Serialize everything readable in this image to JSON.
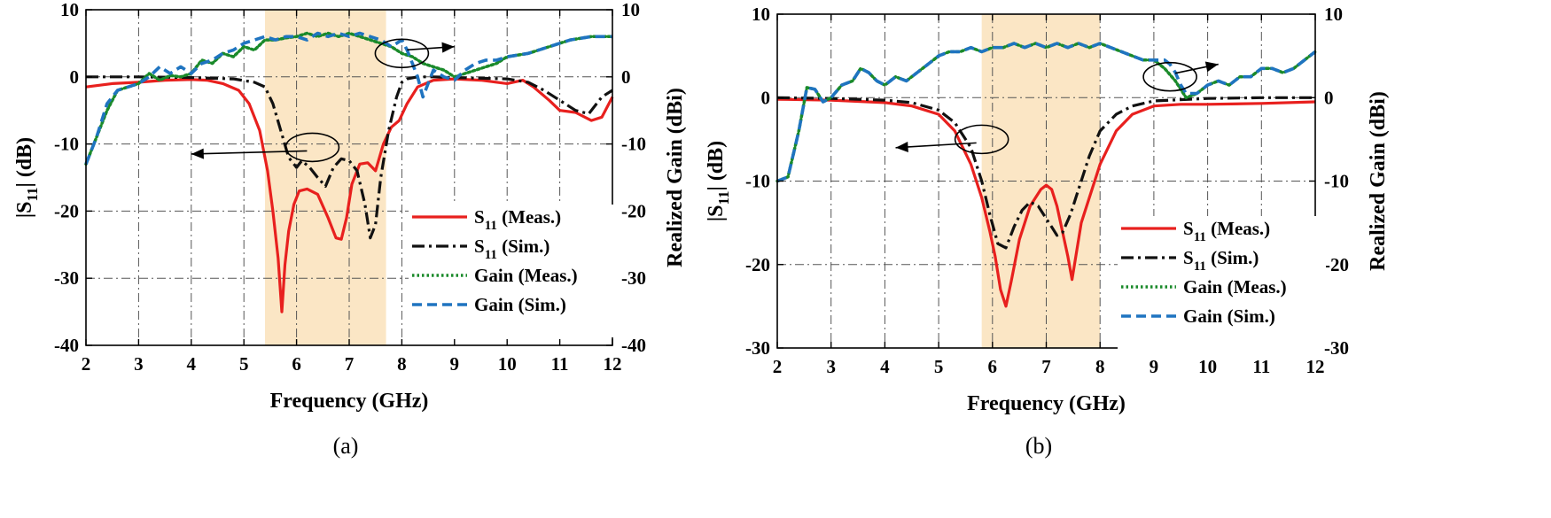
{
  "colors": {
    "s11_meas": "#e8201e",
    "s11_sim": "#111111",
    "gain_meas": "#1a8a2a",
    "gain_sim": "#1f74c0",
    "band": "#fbe6c5"
  },
  "chart_data": [
    {
      "type": "line",
      "caption": "(a)",
      "xlabel": "Frequency (GHz)",
      "ylabel_left_pre": "|S",
      "ylabel_left_sub": "11",
      "ylabel_left_post": "| (dB)",
      "ylabel_right": "Realized Gain (dBi)",
      "xlim": [
        2,
        12
      ],
      "ylim_left": [
        -40,
        10
      ],
      "ylim_right": [
        -40,
        10
      ],
      "xticks": [
        2,
        3,
        4,
        5,
        6,
        7,
        8,
        9,
        10,
        11,
        12
      ],
      "yticks_left": [
        -40,
        -30,
        -20,
        -10,
        0,
        10
      ],
      "yticks_right": [
        -40,
        -30,
        -20,
        -10,
        0,
        10
      ],
      "shaded_band": [
        5.4,
        7.7
      ],
      "grid": true,
      "legend_position": "lower-right",
      "legend": [
        {
          "main": "S",
          "sub": "11",
          "rest": " (Meas.)"
        },
        {
          "main": "S",
          "sub": "11",
          "rest": " (Sim.)"
        },
        {
          "main": "Gain (Meas.)",
          "sub": "",
          "rest": ""
        },
        {
          "main": "Gain (Sim.)",
          "sub": "",
          "rest": ""
        }
      ],
      "annotations": [
        {
          "ellipse_at": [
            6.3,
            -10.5
          ],
          "arrow_to": [
            4.0,
            -11.5
          ],
          "meaning": "S11 curves read on left axis"
        },
        {
          "ellipse_at": [
            8.0,
            3.5
          ],
          "arrow_to": [
            9.0,
            4.5
          ],
          "meaning": "Gain curves read on right axis"
        }
      ],
      "series": [
        {
          "name": "S11 (Meas.)",
          "axis": "left",
          "style": "solid",
          "x": [
            2,
            2.5,
            3,
            3.5,
            4,
            4.3,
            4.6,
            4.9,
            5.1,
            5.3,
            5.45,
            5.55,
            5.65,
            5.72,
            5.78,
            5.85,
            5.95,
            6.05,
            6.2,
            6.4,
            6.6,
            6.75,
            6.85,
            6.95,
            7.05,
            7.2,
            7.35,
            7.5,
            7.65,
            7.8,
            7.95,
            8.1,
            8.3,
            8.6,
            9,
            9.5,
            10,
            10.3,
            10.5,
            10.8,
            11,
            11.3,
            11.6,
            11.8,
            12
          ],
          "y": [
            -1.5,
            -1,
            -0.8,
            -0.5,
            -0.4,
            -0.5,
            -1,
            -2,
            -4,
            -8,
            -14,
            -20,
            -27,
            -35,
            -28,
            -23,
            -19,
            -17,
            -16.7,
            -17.5,
            -21,
            -24,
            -24.2,
            -21,
            -16,
            -13,
            -12.8,
            -14,
            -10,
            -7.5,
            -6.5,
            -4,
            -1.5,
            -0.5,
            -0.3,
            -0.5,
            -1,
            -0.5,
            -1.5,
            -3.5,
            -5,
            -5.3,
            -6.5,
            -6,
            -3
          ]
        },
        {
          "name": "S11 (Sim.)",
          "axis": "left",
          "style": "dashdot",
          "x": [
            2,
            3,
            4,
            4.8,
            5.2,
            5.4,
            5.55,
            5.7,
            5.85,
            6.0,
            6.1,
            6.25,
            6.4,
            6.55,
            6.7,
            6.85,
            7.0,
            7.15,
            7.3,
            7.4,
            7.5,
            7.6,
            7.75,
            7.9,
            8.0,
            8.1,
            8.3,
            8.6,
            9,
            10,
            10.4,
            10.7,
            11,
            11.3,
            11.55,
            11.8,
            12
          ],
          "y": [
            0,
            0,
            -0.1,
            -0.3,
            -0.8,
            -1.5,
            -4,
            -8,
            -12,
            -13.5,
            -12.5,
            -13.5,
            -15,
            -16.3,
            -13.5,
            -12.2,
            -12.5,
            -14,
            -19,
            -24,
            -22,
            -15,
            -8,
            -3,
            -0.8,
            -0.3,
            0,
            0,
            -0.1,
            -0.3,
            -0.8,
            -2,
            -3.5,
            -5,
            -5.5,
            -3,
            -2
          ]
        },
        {
          "name": "Gain (Meas.)",
          "axis": "right",
          "style": "dotted",
          "x": [
            2,
            2.2,
            2.4,
            2.6,
            2.8,
            3,
            3.2,
            3.4,
            3.6,
            3.8,
            4,
            4.2,
            4.4,
            4.6,
            4.8,
            5,
            5.2,
            5.4,
            5.6,
            5.8,
            6,
            6.2,
            6.4,
            6.6,
            6.8,
            7,
            7.2,
            7.4,
            7.6,
            7.8,
            8,
            8.2,
            8.4,
            8.6,
            8.8,
            9,
            9.2,
            9.4,
            9.6,
            9.8,
            10,
            10.4,
            10.8,
            11.2,
            11.6,
            12
          ],
          "y": [
            -13,
            -9,
            -5,
            -2,
            -1.5,
            -1,
            0.5,
            -0.5,
            0.2,
            0,
            0.5,
            2.5,
            2,
            3.5,
            3,
            4.5,
            4,
            5.5,
            5.5,
            5.8,
            6,
            6.5,
            6,
            6.5,
            6,
            6.5,
            6,
            5.5,
            5,
            4.5,
            3.5,
            3,
            2,
            1.5,
            1,
            0,
            0.5,
            1,
            1.5,
            2,
            3,
            3.5,
            4.5,
            5.5,
            6,
            6
          ]
        },
        {
          "name": "Gain (Sim.)",
          "axis": "right",
          "style": "dashed",
          "x": [
            2,
            2.2,
            2.4,
            2.6,
            2.8,
            3,
            3.2,
            3.4,
            3.6,
            3.8,
            4,
            4.2,
            4.4,
            4.6,
            4.8,
            5,
            5.2,
            5.4,
            5.6,
            5.8,
            6,
            6.2,
            6.4,
            6.6,
            6.8,
            7,
            7.2,
            7.4,
            7.6,
            7.8,
            8,
            8.1,
            8.2,
            8.3,
            8.4,
            8.5,
            8.6,
            8.8,
            9,
            9.2,
            9.4,
            9.6,
            9.8,
            10,
            10.4,
            10.8,
            11.2,
            11.6,
            12
          ],
          "y": [
            -13,
            -9,
            -4,
            -2,
            -1.5,
            -1,
            0,
            1.5,
            0.5,
            1.5,
            0.5,
            2,
            2.5,
            3.5,
            4,
            5,
            5.5,
            6,
            5.5,
            6,
            6,
            5.5,
            6.5,
            6,
            6.5,
            6,
            6.5,
            6,
            5.5,
            4.5,
            5.5,
            4,
            2,
            0,
            -3,
            -1,
            1,
            0,
            -0.5,
            1,
            2,
            2.5,
            2.5,
            3,
            3.5,
            4.5,
            5.5,
            6,
            6
          ]
        }
      ]
    },
    {
      "type": "line",
      "caption": "(b)",
      "xlabel": "Frequency (GHz)",
      "ylabel_left_pre": "|S",
      "ylabel_left_sub": "11",
      "ylabel_left_post": "| (dB)",
      "ylabel_right": "Realized Gain (dBi)",
      "xlim": [
        2,
        12
      ],
      "ylim_left": [
        -30,
        10
      ],
      "ylim_right": [
        -30,
        10
      ],
      "xticks": [
        2,
        3,
        4,
        5,
        6,
        7,
        8,
        9,
        10,
        11,
        12
      ],
      "yticks_left": [
        -30,
        -20,
        -10,
        0,
        10
      ],
      "yticks_right": [
        -30,
        -20,
        -10,
        0,
        10
      ],
      "shaded_band": [
        5.8,
        8.0
      ],
      "grid": true,
      "legend_position": "lower-right",
      "legend": [
        {
          "main": "S",
          "sub": "11",
          "rest": " (Meas.)"
        },
        {
          "main": "S",
          "sub": "11",
          "rest": " (Sim.)"
        },
        {
          "main": "Gain (Meas.)",
          "sub": "",
          "rest": ""
        },
        {
          "main": "Gain (Sim.)",
          "sub": "",
          "rest": ""
        }
      ],
      "annotations": [
        {
          "ellipse_at": [
            5.8,
            -5.0
          ],
          "arrow_to": [
            4.2,
            -6.0
          ],
          "meaning": "S11 curves read on left axis"
        },
        {
          "ellipse_at": [
            9.3,
            2.5
          ],
          "arrow_to": [
            10.2,
            4.0
          ],
          "meaning": "Gain curves read on right axis"
        }
      ],
      "series": [
        {
          "name": "S11 (Meas.)",
          "axis": "left",
          "style": "solid",
          "x": [
            2,
            3,
            4,
            4.5,
            5,
            5.3,
            5.6,
            5.8,
            5.95,
            6.05,
            6.15,
            6.25,
            6.35,
            6.5,
            6.7,
            6.9,
            7.0,
            7.1,
            7.2,
            7.3,
            7.4,
            7.48,
            7.55,
            7.65,
            7.8,
            8.0,
            8.3,
            8.6,
            9,
            9.5,
            10,
            11,
            12
          ],
          "y": [
            -0.2,
            -0.3,
            -0.6,
            -1,
            -2,
            -4,
            -8,
            -12,
            -16,
            -19,
            -23,
            -25,
            -22,
            -17,
            -13,
            -11,
            -10.5,
            -11,
            -13,
            -16,
            -19,
            -21.8,
            -19,
            -15,
            -12,
            -8,
            -4,
            -2,
            -1,
            -0.8,
            -0.8,
            -0.7,
            -0.5
          ]
        },
        {
          "name": "S11 (Sim.)",
          "axis": "left",
          "style": "dashdot",
          "x": [
            2,
            3,
            4,
            4.5,
            5,
            5.3,
            5.6,
            5.8,
            5.95,
            6.1,
            6.25,
            6.4,
            6.55,
            6.7,
            6.85,
            7.0,
            7.1,
            7.2,
            7.3,
            7.45,
            7.6,
            7.8,
            8.0,
            8.3,
            8.6,
            9,
            10,
            11,
            12
          ],
          "y": [
            0,
            -0.1,
            -0.3,
            -0.6,
            -1.5,
            -3,
            -6,
            -10,
            -14,
            -17.5,
            -18,
            -15.5,
            -13.5,
            -12.5,
            -13,
            -14.5,
            -15.5,
            -16.5,
            -16.2,
            -14,
            -11,
            -7,
            -4,
            -2,
            -1,
            -0.4,
            -0.1,
            0,
            0
          ]
        },
        {
          "name": "Gain (Meas.)",
          "axis": "right",
          "style": "dotted",
          "x": [
            2,
            2.2,
            2.4,
            2.55,
            2.7,
            2.85,
            3,
            3.2,
            3.4,
            3.55,
            3.7,
            3.85,
            4,
            4.2,
            4.4,
            4.6,
            4.8,
            5,
            5.2,
            5.4,
            5.6,
            5.8,
            6,
            6.2,
            6.4,
            6.6,
            6.8,
            7,
            7.2,
            7.4,
            7.6,
            7.8,
            8,
            8.2,
            8.4,
            8.6,
            8.8,
            9,
            9.2,
            9.4,
            9.6,
            9.8,
            10,
            10.2,
            10.4,
            10.6,
            10.8,
            11,
            11.2,
            11.4,
            11.6,
            11.8,
            12
          ],
          "y": [
            -10,
            -9.5,
            -4,
            1.2,
            1,
            -0.5,
            0,
            1.5,
            2,
            3.5,
            3,
            2,
            1.5,
            2.5,
            2,
            3,
            4,
            5,
            5.5,
            5.5,
            6,
            5.5,
            6,
            6,
            6.5,
            6,
            6.5,
            6,
            6.5,
            6,
            6.5,
            6,
            6.5,
            6,
            5.5,
            5,
            4.5,
            4.5,
            3.5,
            2,
            0,
            0.5,
            1.5,
            2,
            1.5,
            2.5,
            2.5,
            3.5,
            3.5,
            3,
            3.5,
            4.5,
            5.5
          ]
        },
        {
          "name": "Gain (Sim.)",
          "axis": "right",
          "style": "dashed",
          "x": [
            2,
            2.2,
            2.4,
            2.55,
            2.7,
            2.85,
            3,
            3.2,
            3.4,
            3.55,
            3.7,
            3.85,
            4,
            4.2,
            4.4,
            4.6,
            4.8,
            5,
            5.2,
            5.4,
            5.6,
            5.8,
            6,
            6.2,
            6.4,
            6.6,
            6.8,
            7,
            7.2,
            7.4,
            7.6,
            7.8,
            8,
            8.2,
            8.4,
            8.6,
            8.8,
            9,
            9.1,
            9.2,
            9.3,
            9.4,
            9.5,
            9.6,
            9.8,
            10,
            10.2,
            10.4,
            10.6,
            10.8,
            11,
            11.2,
            11.4,
            11.6,
            11.8,
            12
          ],
          "y": [
            -10,
            -9.5,
            -4,
            1.2,
            1,
            -0.5,
            0,
            1.5,
            2,
            3.5,
            3,
            2,
            1.5,
            2.5,
            2,
            3,
            4,
            5,
            5.5,
            5.5,
            6,
            5.5,
            6,
            6,
            6.5,
            6,
            6.5,
            6,
            6.5,
            6,
            6.5,
            6,
            6.5,
            6,
            5.5,
            5,
            4.5,
            4.5,
            4.5,
            4.5,
            4,
            3,
            1.5,
            0.5,
            0.5,
            1.5,
            2,
            1.5,
            2.5,
            2.5,
            3.5,
            3.5,
            3,
            3.5,
            4.5,
            5.5
          ]
        }
      ]
    }
  ]
}
